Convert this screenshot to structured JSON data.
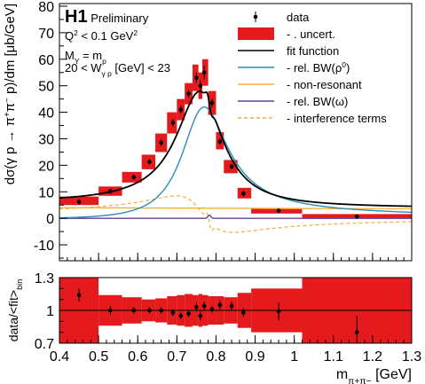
{
  "chart_data": [
    {
      "type": "scatter",
      "panel": "main",
      "experiment": "H1",
      "status": "Preliminary",
      "cuts": [
        {
          "pre": "Q",
          "sup": "2",
          "post": " < 0.1 GeV",
          "sup2": "2"
        },
        {
          "pre": "M",
          "sub": "Y",
          "post": " = m",
          "sub2": "p"
        },
        {
          "pre": "20 < W",
          "sub": "γ p",
          "post": " [GeV] < 23"
        }
      ],
      "ylabel": {
        "t1": "dσ(γ p → π",
        "s1": "+",
        "t2": "π",
        "s2": "−",
        "t3": " p)/dm [μb/GeV]"
      },
      "xlim": [
        0.4,
        1.3
      ],
      "ylim": [
        -16,
        81
      ],
      "yticks": [
        -10,
        0,
        10,
        20,
        30,
        40,
        50,
        60,
        70,
        80
      ],
      "data": {
        "x": [
          0.45,
          0.53,
          0.59,
          0.63,
          0.66,
          0.69,
          0.71,
          0.73,
          0.75,
          0.76,
          0.77,
          0.79,
          0.81,
          0.84,
          0.87,
          0.96,
          1.16
        ],
        "y": [
          6.2,
          10.2,
          15.5,
          21.3,
          28.5,
          36.0,
          41.0,
          47.0,
          53.0,
          50.0,
          55.0,
          43.5,
          29.0,
          19.5,
          9.3,
          2.9,
          0.7
        ],
        "yerr": [
          1.0,
          1.0,
          1.0,
          1.0,
          1.2,
          1.5,
          1.5,
          1.5,
          2.0,
          2.0,
          2.5,
          1.5,
          1.2,
          1.0,
          1.0,
          0.6,
          0.6
        ]
      },
      "uncert_boxes": [
        {
          "x0": 0.4,
          "x1": 0.5,
          "y0": 5.0,
          "y1": 8.2
        },
        {
          "x0": 0.5,
          "x1": 0.56,
          "y0": 8.5,
          "y1": 12.0
        },
        {
          "x0": 0.56,
          "x1": 0.61,
          "y0": 13.5,
          "y1": 17.5
        },
        {
          "x0": 0.61,
          "x1": 0.645,
          "y0": 18.5,
          "y1": 24.0
        },
        {
          "x0": 0.645,
          "x1": 0.675,
          "y0": 25.0,
          "y1": 32.0
        },
        {
          "x0": 0.675,
          "x1": 0.7,
          "y0": 32.0,
          "y1": 40.0
        },
        {
          "x0": 0.7,
          "x1": 0.72,
          "y0": 37.0,
          "y1": 45.0
        },
        {
          "x0": 0.72,
          "x1": 0.74,
          "y0": 43.0,
          "y1": 51.0
        },
        {
          "x0": 0.74,
          "x1": 0.755,
          "y0": 48.0,
          "y1": 58.0
        },
        {
          "x0": 0.755,
          "x1": 0.765,
          "y0": 45.0,
          "y1": 55.0
        },
        {
          "x0": 0.765,
          "x1": 0.78,
          "y0": 50.0,
          "y1": 60.0
        },
        {
          "x0": 0.78,
          "x1": 0.8,
          "y0": 39.0,
          "y1": 48.0
        },
        {
          "x0": 0.8,
          "x1": 0.82,
          "y0": 26.0,
          "y1": 32.5
        },
        {
          "x0": 0.82,
          "x1": 0.855,
          "y0": 17.0,
          "y1": 22.0
        },
        {
          "x0": 0.855,
          "x1": 0.89,
          "y0": 7.5,
          "y1": 11.5
        },
        {
          "x0": 0.89,
          "x1": 1.02,
          "y0": 1.8,
          "y1": 3.8
        },
        {
          "x0": 1.02,
          "x1": 1.3,
          "y0": 0.0,
          "y1": 1.6
        }
      ],
      "legend": {
        "placement": "top-right",
        "entries": [
          {
            "kind": "marker",
            "label": "data"
          },
          {
            "kind": "box",
            "label": "- . uncert.",
            "color": "#e41a1c"
          },
          {
            "kind": "line",
            "label": "fit function",
            "color": "#000000",
            "dash": false
          },
          {
            "kind": "line",
            "label": "- rel. BW(ρ",
            "sup": "0",
            "tail": ")",
            "color": "#2b8cbe",
            "dash": false
          },
          {
            "kind": "line",
            "label": "- non-resonant",
            "color": "#f4b142",
            "dash": false
          },
          {
            "kind": "line",
            "label": "- rel. BW(ω)",
            "color": "#6a3d9a",
            "dash": false
          },
          {
            "kind": "line",
            "label": "- interference terms",
            "color": "#f4b142",
            "dash": true
          }
        ]
      },
      "colors": {
        "uncert": "#e41a1c",
        "fit": "#000000",
        "bw_rho": "#2b8cbe",
        "non_resonant": "#f4b142",
        "bw_omega": "#6a3d9a",
        "interference": "#f4b142"
      }
    },
    {
      "type": "scatter",
      "panel": "ratio",
      "ylabel": {
        "t1": "data/<fit>",
        "sub": "bin"
      },
      "xlabel": {
        "t1": "m",
        "sub": "π",
        "subsup1": "+",
        "sub2": "π",
        "subsup2": "−",
        "t2": " [GeV]"
      },
      "xlim": [
        0.4,
        1.3
      ],
      "ylim": [
        0.7,
        1.3
      ],
      "yticks": [
        {
          "v": 0.7,
          "label": "0.7"
        },
        {
          "v": 1.0,
          "label": "1"
        },
        {
          "v": 1.3,
          "label": "1.3"
        }
      ],
      "xticks": [
        0.4,
        0.5,
        0.6,
        0.7,
        0.8,
        0.9,
        1.0,
        1.1,
        1.2,
        1.3
      ],
      "xtick_labels": [
        "0.4",
        "0.5",
        "0.6",
        "0.7",
        "0.8",
        "0.9",
        "1",
        "1.1",
        "1.2",
        "1.3"
      ],
      "data": {
        "x": [
          0.45,
          0.53,
          0.59,
          0.63,
          0.66,
          0.69,
          0.71,
          0.73,
          0.75,
          0.76,
          0.77,
          0.79,
          0.81,
          0.84,
          0.87,
          0.96,
          1.16
        ],
        "y": [
          1.14,
          1.0,
          1.0,
          1.0,
          1.0,
          0.98,
          0.95,
          0.97,
          1.03,
          0.95,
          1.04,
          1.01,
          1.05,
          1.04,
          0.98,
          0.99,
          0.8
        ],
        "yerr": [
          0.06,
          0.04,
          0.03,
          0.03,
          0.03,
          0.03,
          0.03,
          0.03,
          0.04,
          0.04,
          0.04,
          0.03,
          0.04,
          0.04,
          0.04,
          0.08,
          0.15
        ]
      },
      "uncert_boxes": [
        {
          "x0": 0.4,
          "x1": 0.5,
          "y0": 0.7,
          "y1": 1.3
        },
        {
          "x0": 0.5,
          "x1": 0.56,
          "y0": 0.86,
          "y1": 1.14
        },
        {
          "x0": 0.56,
          "x1": 0.61,
          "y0": 0.88,
          "y1": 1.12
        },
        {
          "x0": 0.61,
          "x1": 0.645,
          "y0": 0.9,
          "y1": 1.1
        },
        {
          "x0": 0.645,
          "x1": 0.675,
          "y0": 0.89,
          "y1": 1.11
        },
        {
          "x0": 0.675,
          "x1": 0.7,
          "y0": 0.87,
          "y1": 1.13
        },
        {
          "x0": 0.7,
          "x1": 0.72,
          "y0": 0.86,
          "y1": 1.14
        },
        {
          "x0": 0.72,
          "x1": 0.74,
          "y0": 0.85,
          "y1": 1.15
        },
        {
          "x0": 0.74,
          "x1": 0.755,
          "y0": 0.86,
          "y1": 1.14
        },
        {
          "x0": 0.755,
          "x1": 0.765,
          "y0": 0.85,
          "y1": 1.15
        },
        {
          "x0": 0.765,
          "x1": 0.78,
          "y0": 0.86,
          "y1": 1.14
        },
        {
          "x0": 0.78,
          "x1": 0.8,
          "y0": 0.87,
          "y1": 1.13
        },
        {
          "x0": 0.8,
          "x1": 0.82,
          "y0": 0.87,
          "y1": 1.13
        },
        {
          "x0": 0.82,
          "x1": 0.855,
          "y0": 0.88,
          "y1": 1.12
        },
        {
          "x0": 0.855,
          "x1": 0.89,
          "y0": 0.84,
          "y1": 1.16
        },
        {
          "x0": 0.89,
          "x1": 1.02,
          "y0": 0.8,
          "y1": 1.2
        },
        {
          "x0": 1.02,
          "x1": 1.3,
          "y0": 0.7,
          "y1": 1.3
        }
      ]
    }
  ]
}
